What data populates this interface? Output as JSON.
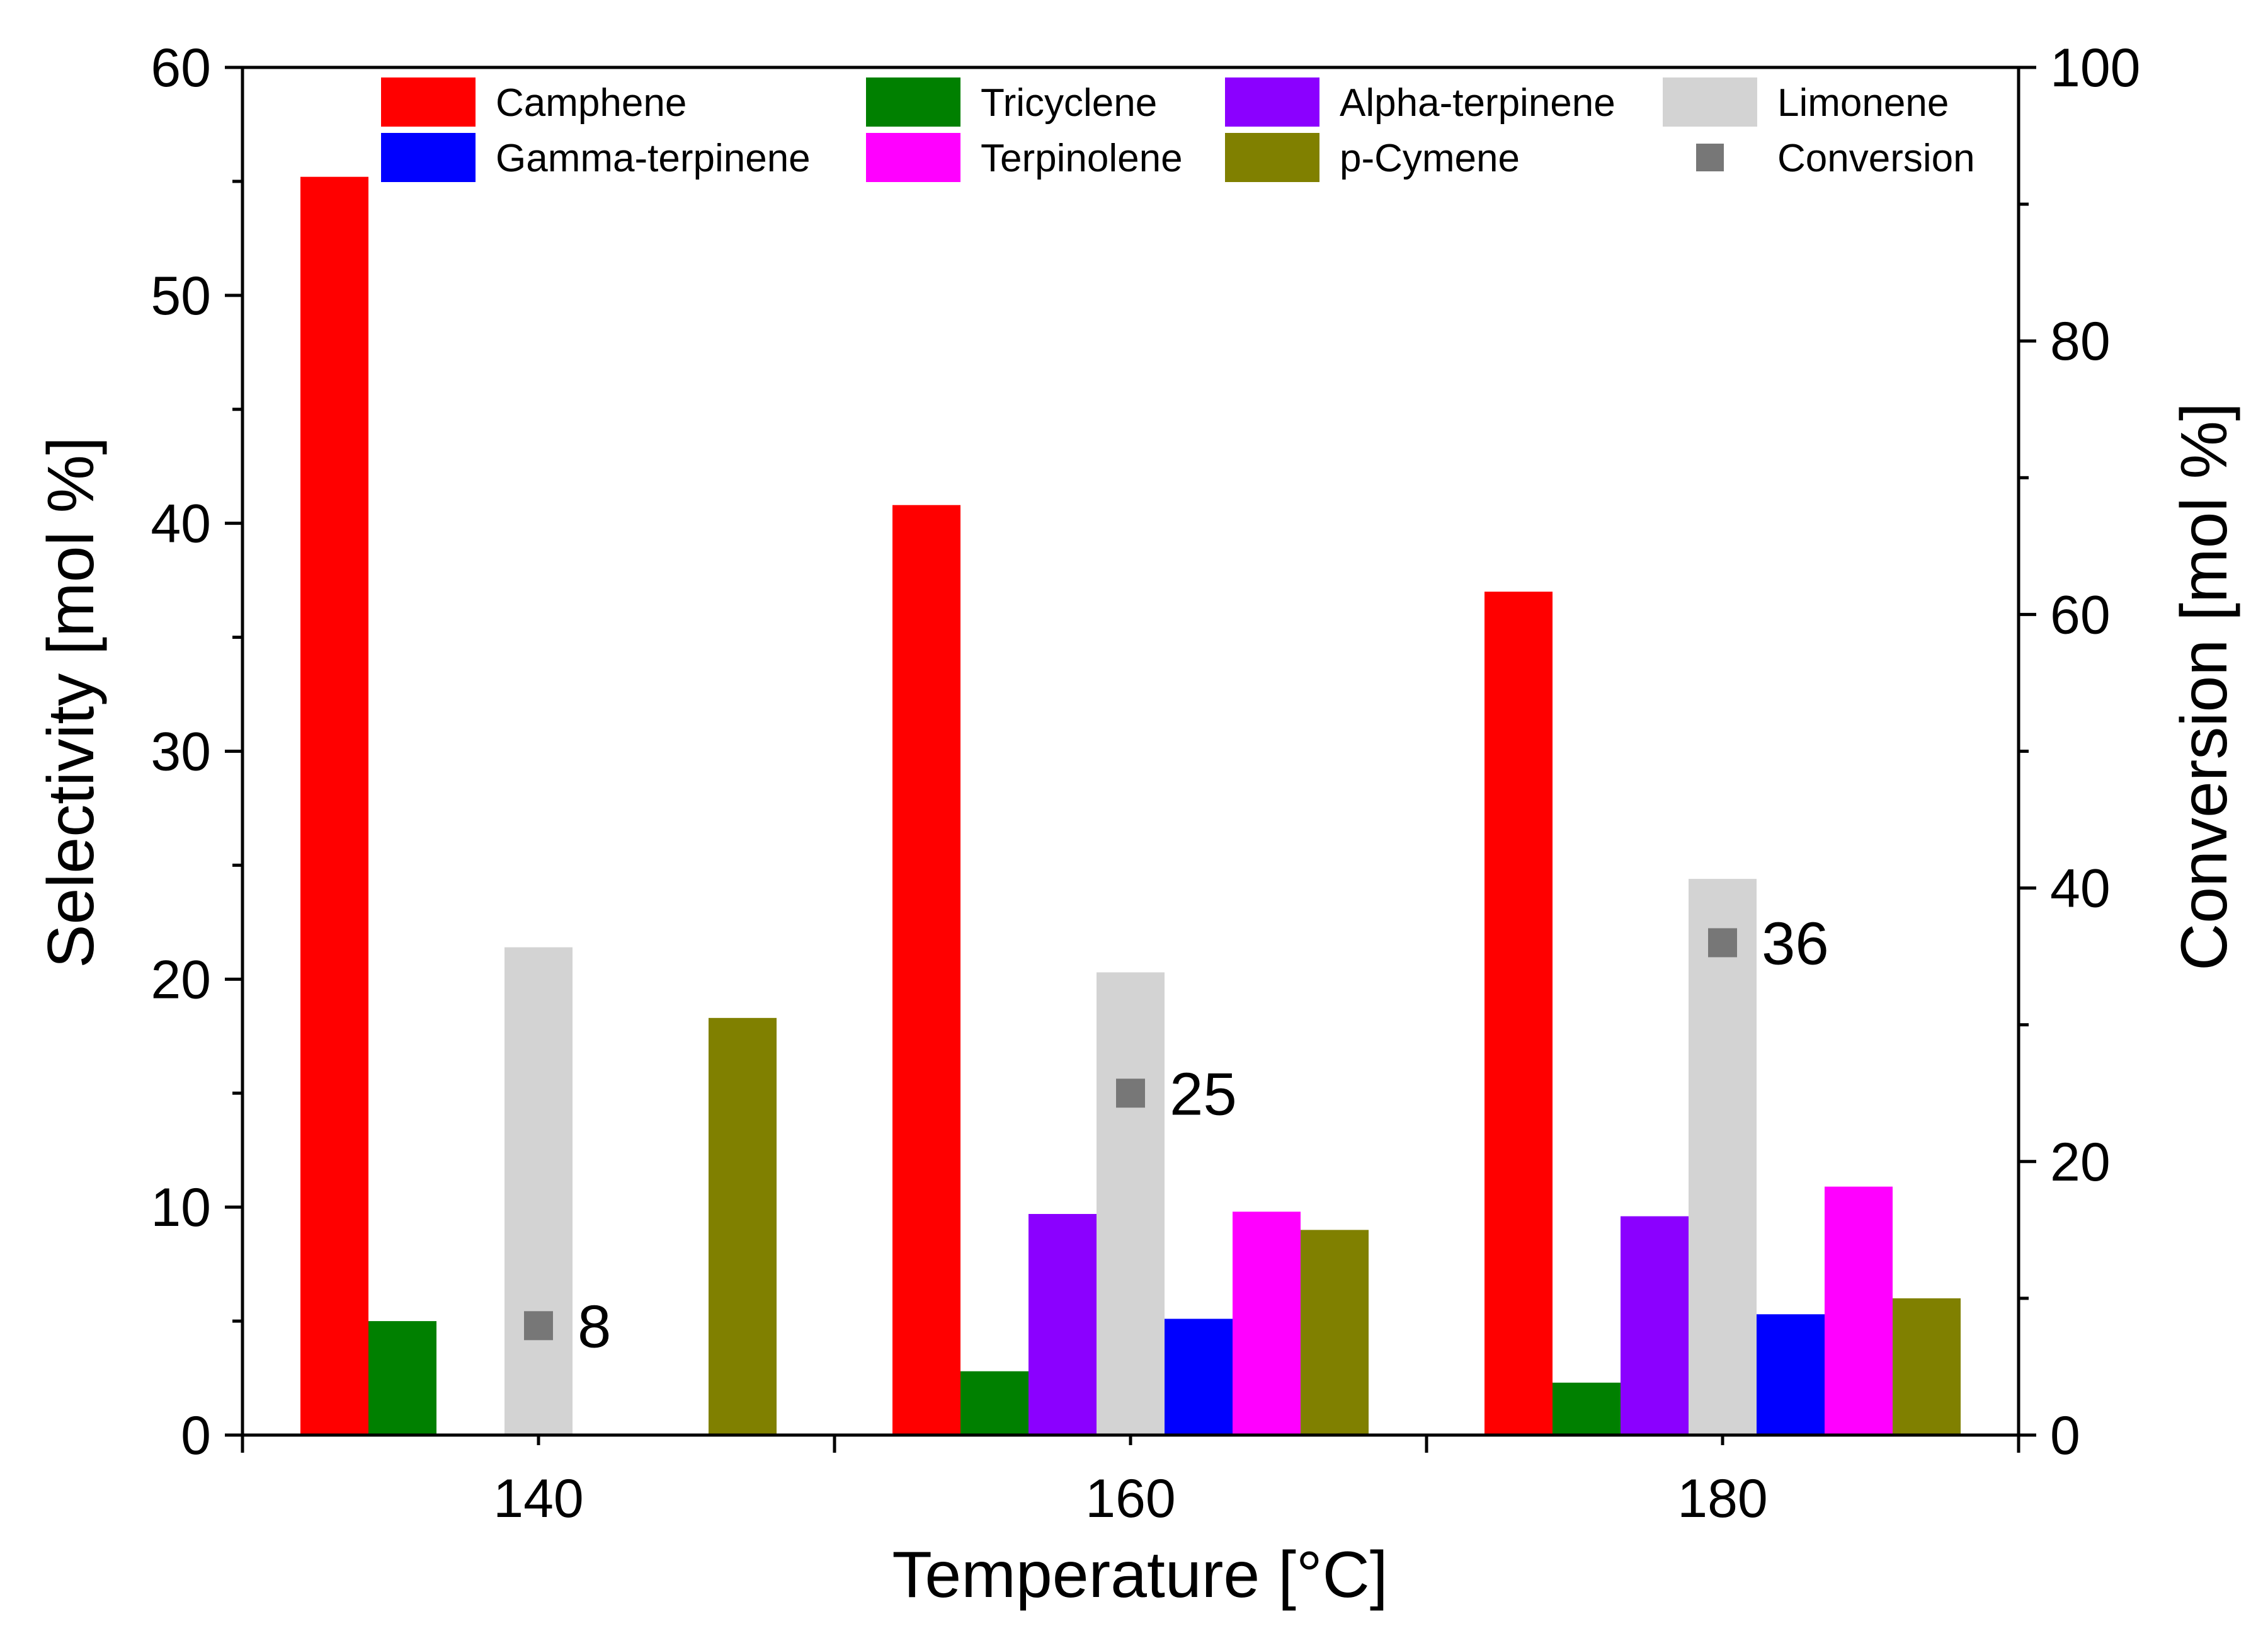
{
  "chart_data": {
    "type": "bar",
    "xlabel": "Temperature [°C]",
    "ylabel": "Selectivity [mol %]",
    "y2label": "Conversion [mol %]",
    "categories": [
      "140",
      "160",
      "180"
    ],
    "ylim": [
      0,
      60
    ],
    "y2lim": [
      0,
      100
    ],
    "yticks": [
      "0",
      "10",
      "20",
      "30",
      "40",
      "50",
      "60"
    ],
    "y2ticks": [
      "0",
      "20",
      "40",
      "60",
      "80",
      "100"
    ],
    "series": [
      {
        "name": "Camphene",
        "color": "#ff0000",
        "values": [
          55.2,
          40.8,
          37.0
        ]
      },
      {
        "name": "Tricyclene",
        "color": "#008000",
        "values": [
          5.0,
          2.8,
          2.3
        ]
      },
      {
        "name": "Alpha-terpinene",
        "color": "#8b00ff",
        "values": [
          0,
          9.7,
          9.6
        ]
      },
      {
        "name": "Limonene",
        "color": "#d3d3d3",
        "values": [
          21.4,
          20.3,
          24.4
        ]
      },
      {
        "name": "Gamma-terpinene",
        "color": "#0000ff",
        "values": [
          0,
          5.1,
          5.3
        ]
      },
      {
        "name": "Terpinolene",
        "color": "#ff00ff",
        "values": [
          0,
          9.8,
          10.9
        ]
      },
      {
        "name": "p-Cymene",
        "color": "#808000",
        "values": [
          18.3,
          9.0,
          6.0
        ]
      }
    ],
    "conversion": {
      "name": "Conversion",
      "color": "#777777",
      "values": [
        8,
        25,
        36
      ],
      "labels": [
        "8",
        "25",
        "36"
      ]
    },
    "legend": {
      "position": "top",
      "entries": [
        "Camphene",
        "Tricyclene",
        "Alpha-terpinene",
        "Limonene",
        "Gamma-terpinene",
        "Terpinolene",
        "p-Cymene",
        "Conversion"
      ]
    }
  }
}
